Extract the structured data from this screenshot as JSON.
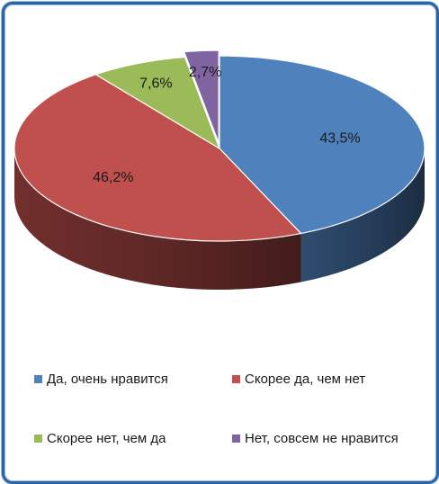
{
  "chart_data": {
    "type": "pie",
    "variant": "3d-exploded",
    "labels": [
      "Да, очень нравится",
      "Скорее да, чем нет",
      "Скорее нет, чем да",
      "Нет, совсем не нравится"
    ],
    "values": [
      43.5,
      46.2,
      7.6,
      2.7
    ],
    "data_labels": [
      "43,5%",
      "46,2%",
      "7,6%",
      "2,7%"
    ],
    "colors": [
      "#4f81bd",
      "#c0504d",
      "#9bbb59",
      "#8064a2"
    ],
    "legend_position": "bottom",
    "title": ""
  }
}
